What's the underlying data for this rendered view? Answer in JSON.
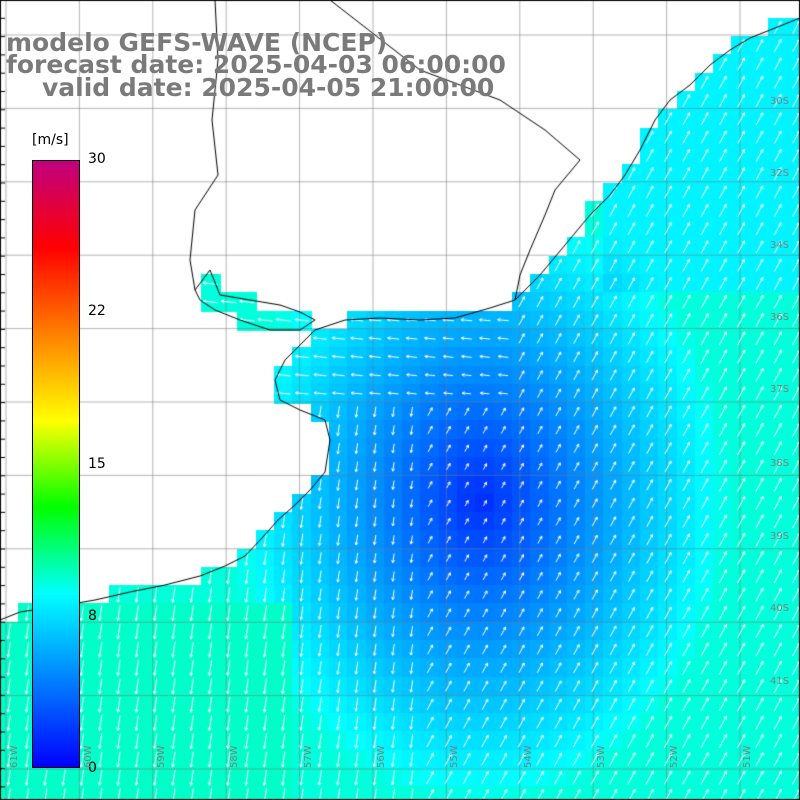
{
  "title": {
    "line1": "modelo GEFS-WAVE (NCEP)",
    "line2": "forecast date: 2025-04-03 06:00:00",
    "line3": "valid date: 2025-04-05 21:00:00"
  },
  "colorbar": {
    "unit": "[m/s]",
    "ticks": [
      "30",
      "22",
      "15",
      "8",
      "0"
    ],
    "min": 0,
    "max": 30,
    "colors": [
      "#0000ff",
      "#0080ff",
      "#00ffff",
      "#00ff00",
      "#ffff00",
      "#ff8000",
      "#ff0000",
      "#c00080"
    ]
  },
  "grid": {
    "lat_labels": [
      "30S",
      "32S",
      "34S",
      "36S",
      "37S",
      "38S",
      "39S",
      "40S",
      "41S"
    ],
    "lon_labels": [
      "61W",
      "60W",
      "59W",
      "58W",
      "57W",
      "56W",
      "55W",
      "54W",
      "53W",
      "52W",
      "51W"
    ]
  },
  "map": {
    "land_color": "#ffffff",
    "coast_color": "#000000",
    "field": "wind speed",
    "field_range_ms": [
      0,
      10
    ]
  }
}
